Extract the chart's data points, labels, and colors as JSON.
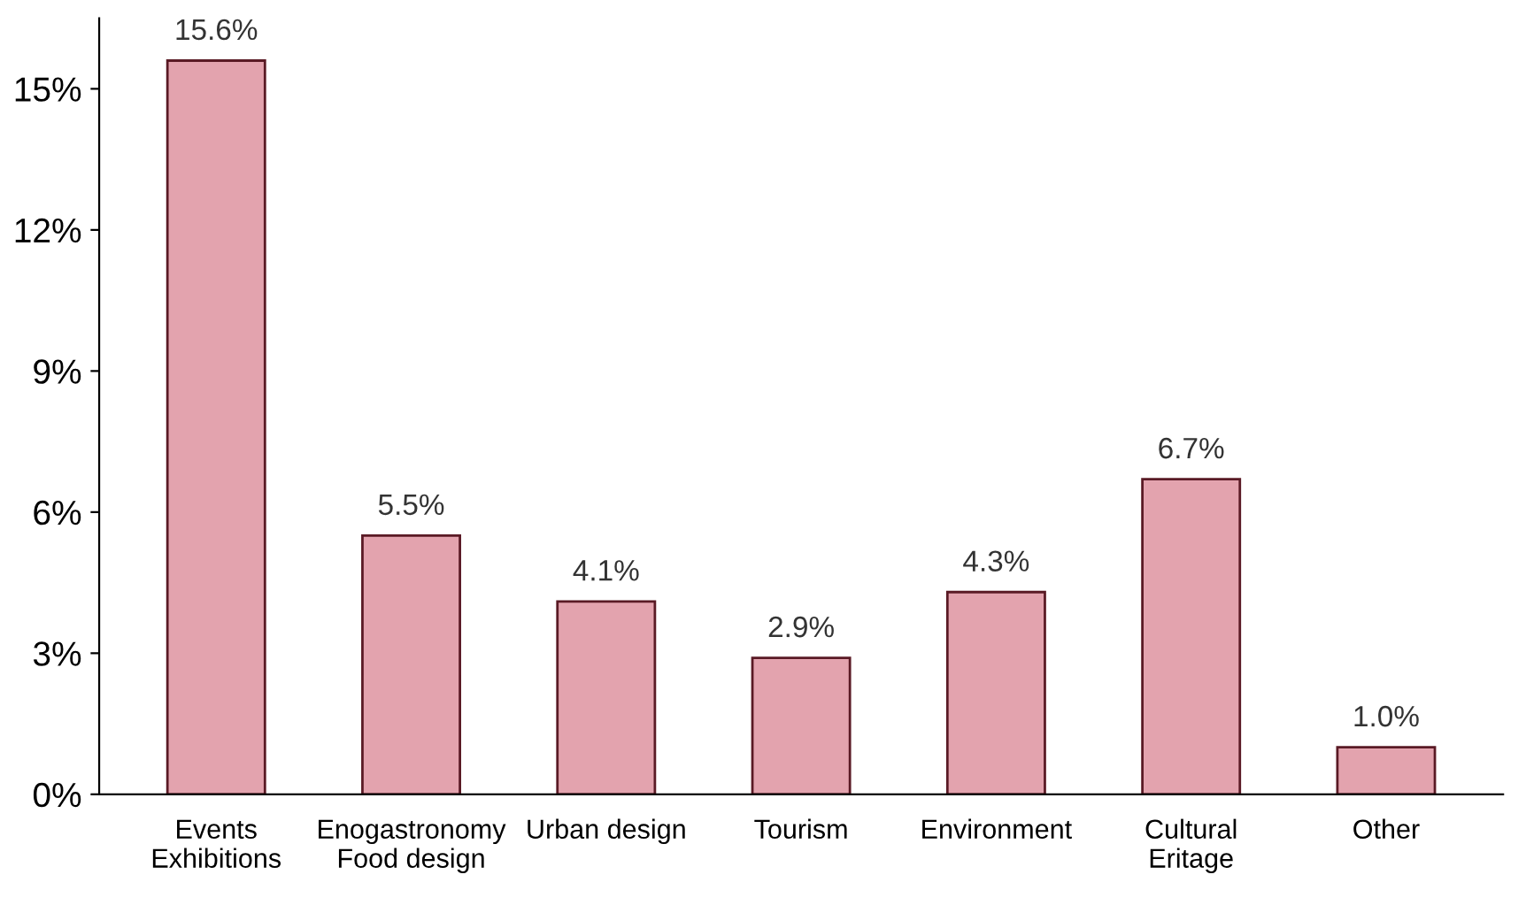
{
  "chart_data": {
    "type": "bar",
    "categories": [
      "Events\nExhibitions",
      "Enogastronomy\nFood design",
      "Urban design",
      "Tourism",
      "Environment",
      "Cultural\nEritage",
      "Other"
    ],
    "values": [
      15.6,
      5.5,
      4.1,
      2.9,
      4.3,
      6.7,
      1.0
    ],
    "value_labels": [
      "15.6%",
      "5.5%",
      "4.1%",
      "2.9%",
      "4.3%",
      "6.7%",
      "1.0%"
    ],
    "color": "#e3a3ae",
    "ylim": [
      0,
      16.5
    ],
    "yticks": [
      {
        "value": 0,
        "label": "0%"
      },
      {
        "value": 3,
        "label": "3%"
      },
      {
        "value": 6,
        "label": "6%"
      },
      {
        "value": 9,
        "label": "9%"
      },
      {
        "value": 12,
        "label": "12%"
      },
      {
        "value": 15,
        "label": "15%"
      }
    ],
    "grid": false,
    "legend": false
  }
}
